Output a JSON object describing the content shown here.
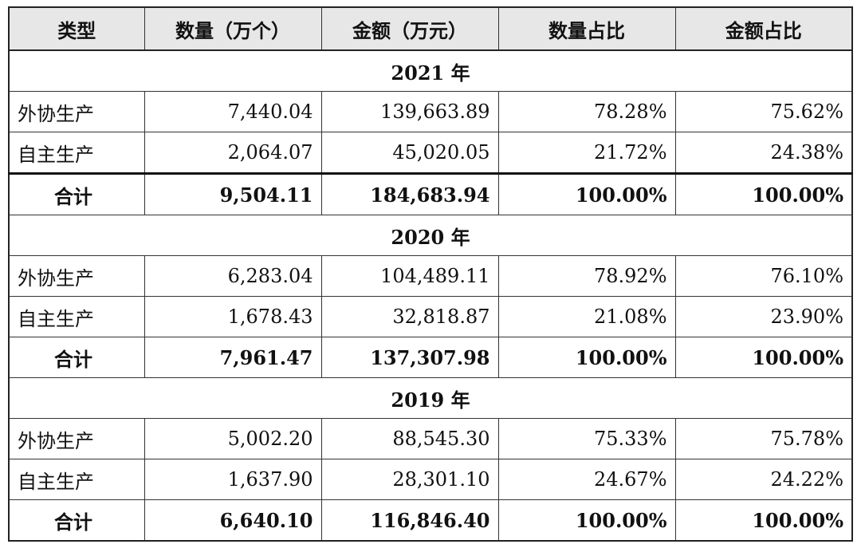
{
  "table": {
    "headers": [
      "类型",
      "数量（万个）",
      "金额（万元）",
      "数量占比",
      "金额占比"
    ],
    "sections": [
      {
        "year": "2021 年",
        "rows": [
          {
            "type": "外协生产",
            "qty": "7,440.04",
            "amount": "139,663.89",
            "qty_pct": "78.28%",
            "amount_pct": "75.62%"
          },
          {
            "type": "自主生产",
            "qty": "2,064.07",
            "amount": "45,020.05",
            "qty_pct": "21.72%",
            "amount_pct": "24.38%"
          }
        ],
        "total": {
          "type": "合计",
          "qty": "9,504.11",
          "amount": "184,683.94",
          "qty_pct": "100.00%",
          "amount_pct": "100.00%"
        }
      },
      {
        "year": "2020 年",
        "rows": [
          {
            "type": "外协生产",
            "qty": "6,283.04",
            "amount": "104,489.11",
            "qty_pct": "78.92%",
            "amount_pct": "76.10%"
          },
          {
            "type": "自主生产",
            "qty": "1,678.43",
            "amount": "32,818.87",
            "qty_pct": "21.08%",
            "amount_pct": "23.90%"
          }
        ],
        "total": {
          "type": "合计",
          "qty": "7,961.47",
          "amount": "137,307.98",
          "qty_pct": "100.00%",
          "amount_pct": "100.00%"
        }
      },
      {
        "year": "2019 年",
        "rows": [
          {
            "type": "外协生产",
            "qty": "5,002.20",
            "amount": "88,545.30",
            "qty_pct": "75.33%",
            "amount_pct": "75.78%"
          },
          {
            "type": "自主生产",
            "qty": "1,637.90",
            "amount": "28,301.10",
            "qty_pct": "24.67%",
            "amount_pct": "24.22%"
          }
        ],
        "total": {
          "type": "合计",
          "qty": "6,640.10",
          "amount": "116,846.40",
          "qty_pct": "100.00%",
          "amount_pct": "100.00%"
        }
      }
    ]
  }
}
